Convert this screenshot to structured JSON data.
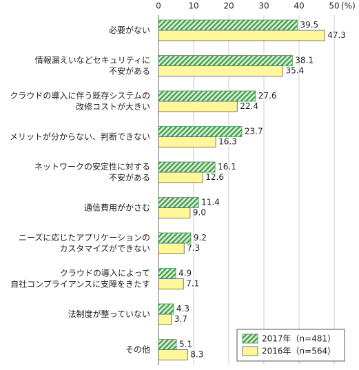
{
  "chart_data": {
    "type": "hbar",
    "categories": [
      "必要がない",
      "情報漏えいなどセキュリティに\n不安がある",
      "クラウドの導入に伴う既存システムの\n改修コストが大きい",
      "メリットが分からない、判断できない",
      "ネットワークの安定性に対する\n不安がある",
      "通信費用がかさむ",
      "ニーズに応じたアプリケーションの\nカスタマイズができない",
      "クラウドの導入によって\n自社コンプライアンスに支障をきたす",
      "法制度が整っていない",
      "その他"
    ],
    "series": [
      {
        "name": "2017年（n=481）",
        "color": "#3d9a4a",
        "hatch": true,
        "values": [
          39.5,
          38.1,
          27.6,
          23.7,
          16.1,
          11.4,
          9.2,
          4.9,
          4.3,
          5.1
        ],
        "value_labels": [
          "39.5",
          "38.1",
          "27.6",
          "23.7",
          "16.1",
          "11.4",
          "9.2",
          "4.9",
          "4.3",
          "5.1"
        ]
      },
      {
        "name": "2016年（n=564）",
        "color": "#fff799",
        "hatch": false,
        "values": [
          47.3,
          35.4,
          22.4,
          16.3,
          12.6,
          9.0,
          7.3,
          7.1,
          3.7,
          8.3
        ],
        "value_labels": [
          "47.3",
          "35.4",
          "22.4",
          "16.3",
          "12.6",
          "9.0",
          "7.3",
          "7.1",
          "3.7",
          "8.3"
        ]
      }
    ],
    "xlabel": "(%)",
    "xlim": [
      0,
      50
    ],
    "xticks": [
      0,
      10,
      20,
      30,
      40,
      50
    ],
    "grid": true,
    "legend": "lower right"
  }
}
